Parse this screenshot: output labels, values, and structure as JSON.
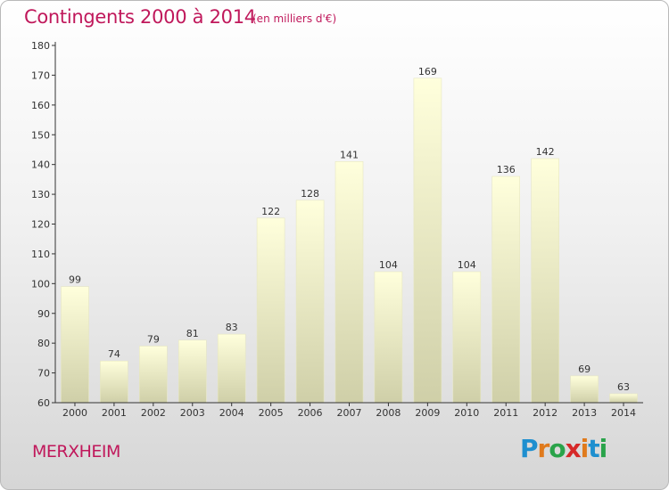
{
  "header": {
    "title": "Contingents 2000 à 2014",
    "subtitle": "(en milliers d'€)"
  },
  "footer": {
    "commune": "MERXHEIM",
    "logo_text": "Proxiti"
  },
  "colors": {
    "title": "#c0185b",
    "bar_top": "#ffffdc",
    "bar_bottom": "#cfcfa8",
    "axis": "#333333",
    "logo_letters": [
      "#1e8fcf",
      "#e07a1c",
      "#2aa34a",
      "#d62828",
      "#e07a1c",
      "#1e8fcf",
      "#2aa34a"
    ]
  },
  "chart_data": {
    "type": "bar",
    "title": "Contingents 2000 à 2014",
    "subtitle": "(en milliers d'€)",
    "xlabel": "",
    "ylabel": "",
    "categories": [
      "2000",
      "2001",
      "2002",
      "2003",
      "2004",
      "2005",
      "2006",
      "2007",
      "2008",
      "2009",
      "2010",
      "2011",
      "2012",
      "2013",
      "2014"
    ],
    "values": [
      99,
      74,
      79,
      81,
      83,
      122,
      128,
      141,
      104,
      169,
      104,
      136,
      142,
      69,
      63
    ],
    "ylim": [
      60,
      180
    ],
    "yticks": [
      60,
      70,
      80,
      90,
      100,
      110,
      120,
      130,
      140,
      150,
      160,
      170,
      180
    ],
    "grid": false,
    "data_labels": true
  }
}
